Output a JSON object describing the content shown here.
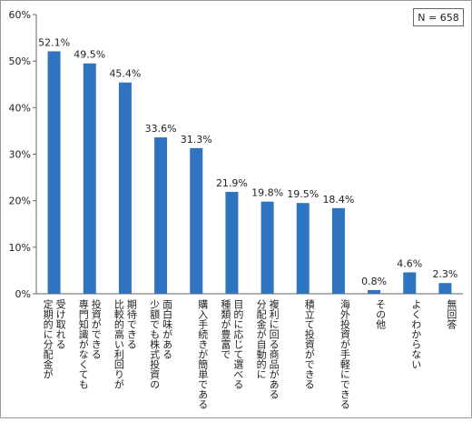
{
  "chart_data": {
    "type": "bar",
    "annotation": "N = 658",
    "categories": [
      [
        "受け取れる",
        "定期的に分配金が"
      ],
      [
        "投資ができる",
        "専門知識がなくても"
      ],
      [
        "期待できる",
        "比較的高い利回りが"
      ],
      [
        "面白味がある",
        "少額でも株式投資の"
      ],
      [
        "購入手続きが簡単である"
      ],
      [
        "目的に応じて選べる",
        "種類が豊富で"
      ],
      [
        "複利に回る商品がある",
        "分配金が自動的に"
      ],
      [
        "積立て投資ができる"
      ],
      [
        "海外投資が手軽にできる"
      ],
      [
        "その他"
      ],
      [
        "よくわからない"
      ],
      [
        "無回答"
      ]
    ],
    "values": [
      52.1,
      49.5,
      45.4,
      33.6,
      31.3,
      21.9,
      19.8,
      19.5,
      18.4,
      0.8,
      4.6,
      2.3
    ],
    "value_labels": [
      "52.1%",
      "49.5%",
      "45.4%",
      "33.6%",
      "31.3%",
      "21.9%",
      "19.8%",
      "19.5%",
      "18.4%",
      "0.8%",
      "4.6%",
      "2.3%"
    ],
    "color": "#2e74c0",
    "ylim": [
      0,
      60
    ],
    "yticks": [
      {
        "value": 0,
        "label": "0%"
      },
      {
        "value": 10,
        "label": "10%"
      },
      {
        "value": 20,
        "label": "20%"
      },
      {
        "value": 30,
        "label": "30%"
      },
      {
        "value": 40,
        "label": "40%"
      },
      {
        "value": 50,
        "label": "50%"
      },
      {
        "value": 60,
        "label": "60%"
      }
    ]
  }
}
